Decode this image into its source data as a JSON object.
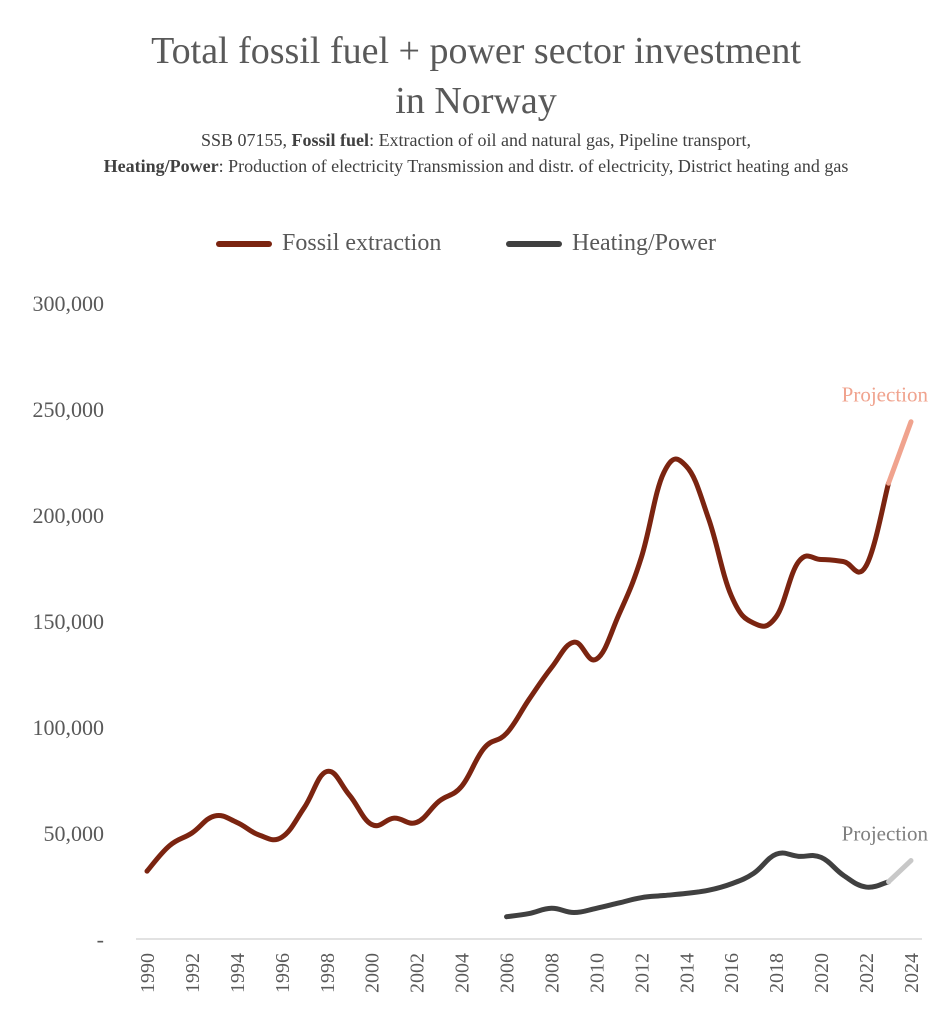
{
  "chart_data": {
    "type": "line",
    "title_line1": "Total fossil fuel + power sector investment",
    "title_line2": "in Norway",
    "subtitle": {
      "source": "SSB 07155, ",
      "fossil_label": "Fossil fuel",
      "fossil_desc": ": Extraction of oil and natural gas, Pipeline transport,",
      "heating_label": "Heating/Power",
      "heating_desc": ": Production of electricity Transmission and distr. of electricity, District heating and gas"
    },
    "ylim": [
      0,
      300000
    ],
    "y_ticks": [
      0,
      50000,
      100000,
      150000,
      200000,
      250000,
      300000
    ],
    "y_tick_labels": [
      "-",
      "50,000",
      "100,000",
      "150,000",
      "200,000",
      "250,000",
      "300,000"
    ],
    "x_tick_labels": [
      "1990",
      "1992",
      "1994",
      "1996",
      "1998",
      "2000",
      "2002",
      "2004",
      "2006",
      "2008",
      "2010",
      "2012",
      "2014",
      "2016",
      "2018",
      "2020",
      "2022",
      "2024"
    ],
    "xlim": [
      1990,
      2024
    ],
    "series": [
      {
        "name": "Fossil extraction",
        "color": "#7B2410",
        "projection_color": "#F0A38E",
        "x": [
          1990,
          1991,
          1992,
          1993,
          1994,
          1995,
          1996,
          1997,
          1998,
          1999,
          2000,
          2001,
          2002,
          2003,
          2004,
          2005,
          2006,
          2007,
          2008,
          2009,
          2010,
          2011,
          2012,
          2013,
          2014,
          2015,
          2016,
          2017,
          2018,
          2019,
          2020,
          2021,
          2022,
          2023
        ],
        "values": [
          32000,
          44000,
          50000,
          58000,
          55000,
          49000,
          48000,
          62000,
          79000,
          68000,
          54000,
          57000,
          55000,
          65000,
          72000,
          90000,
          97000,
          113000,
          128000,
          140000,
          132000,
          153000,
          180000,
          220000,
          223000,
          198000,
          162000,
          149000,
          152000,
          178000,
          179000,
          178000,
          176000,
          215000
        ],
        "projection": {
          "x": [
            2023,
            2024
          ],
          "values": [
            215000,
            244000
          ]
        }
      },
      {
        "name": "Heating/Power",
        "color": "#404040",
        "projection_color": "#C8C8C8",
        "x": [
          2006,
          2007,
          2008,
          2009,
          2010,
          2011,
          2012,
          2013,
          2014,
          2015,
          2016,
          2017,
          2018,
          2019,
          2020,
          2021,
          2022,
          2023
        ],
        "values": [
          10500,
          12000,
          14500,
          12500,
          14500,
          17000,
          19500,
          20500,
          21500,
          23000,
          26000,
          31000,
          40000,
          39000,
          38500,
          30000,
          24500,
          27000
        ],
        "projection": {
          "x": [
            2023,
            2024
          ],
          "values": [
            27000,
            37000
          ]
        }
      }
    ],
    "annotations": [
      {
        "text": "Projection",
        "series": "Fossil extraction",
        "color": "#F0A38E"
      },
      {
        "text": "Projection",
        "series": "Heating/Power",
        "color": "#7F7F7F"
      }
    ],
    "legend_position": "top-center",
    "grid": false
  }
}
